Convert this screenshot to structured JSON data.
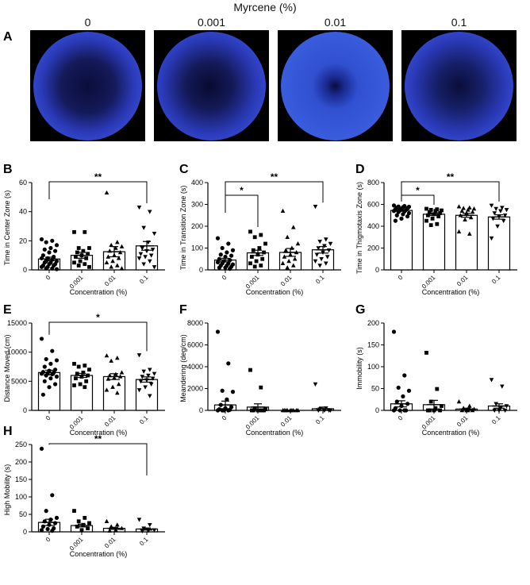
{
  "figure_title": "Myrcene (%)",
  "panel_a": {
    "letter": "A",
    "columns": [
      "0",
      "0.001",
      "0.01",
      "0.1"
    ],
    "heatmap_colors": {
      "background": "#000000",
      "low": "#1a1f6e",
      "mid": "#3a4fd8",
      "edge": "#5fc8f0",
      "high_ring": "#e0201a",
      "warm": "#f5e020"
    }
  },
  "chart_data": [
    {
      "letter": "B",
      "type": "bar",
      "ylabel": "Time in Center Zone (s)",
      "xlabel": "Concentration (%)",
      "categories": [
        "0",
        "0.001",
        "0.01",
        "0.1"
      ],
      "ylim": [
        0,
        60
      ],
      "yticks": [
        "0",
        "20",
        "40",
        "60"
      ],
      "means": [
        7.5,
        10,
        12.5,
        16.5
      ],
      "sem": [
        1.2,
        2,
        3.5,
        3
      ],
      "points": [
        [
          21,
          20,
          19,
          17,
          15,
          14,
          13,
          12,
          10,
          9,
          8,
          8,
          7,
          6,
          6,
          5,
          5,
          4,
          4,
          3,
          3,
          2,
          2,
          1,
          1,
          0.5
        ],
        [
          26,
          26,
          15,
          15,
          13,
          12,
          11,
          10,
          9,
          8,
          6,
          5,
          4,
          3,
          2
        ],
        [
          53,
          19,
          17,
          16,
          15,
          13,
          12,
          10,
          9,
          8,
          6,
          5,
          3,
          2,
          1
        ],
        [
          43,
          40,
          29,
          25,
          19,
          15,
          14,
          13,
          11,
          10,
          9,
          8,
          6,
          4,
          2
        ]
      ],
      "brackets": [
        {
          "from": 0,
          "to": 3,
          "label": "**",
          "level": "outer"
        }
      ]
    },
    {
      "letter": "C",
      "type": "bar",
      "ylabel": "Time in Transition Zone (s)",
      "xlabel": "Concentration (%)",
      "categories": [
        "0",
        "0.001",
        "0.01",
        "0.1"
      ],
      "ylim": [
        0,
        400
      ],
      "yticks": [
        "0",
        "100",
        "200",
        "300",
        "400"
      ],
      "means": [
        45,
        78,
        80,
        92
      ],
      "sem": [
        8,
        12,
        18,
        15
      ],
      "points": [
        [
          145,
          120,
          100,
          90,
          80,
          70,
          65,
          60,
          50,
          45,
          40,
          35,
          30,
          30,
          25,
          20,
          20,
          15,
          10,
          10,
          5
        ],
        [
          175,
          160,
          150,
          120,
          100,
          90,
          80,
          70,
          60,
          50,
          40,
          30,
          20,
          15
        ],
        [
          270,
          195,
          150,
          120,
          100,
          90,
          80,
          70,
          60,
          50,
          40,
          30,
          20,
          10
        ],
        [
          290,
          140,
          130,
          120,
          110,
          100,
          90,
          80,
          70,
          60,
          50,
          40,
          30,
          20
        ]
      ],
      "brackets": [
        {
          "from": 0,
          "to": 1,
          "label": "*",
          "level": "inner"
        },
        {
          "from": 0,
          "to": 3,
          "label": "**",
          "level": "outer"
        }
      ]
    },
    {
      "letter": "D",
      "type": "bar",
      "ylabel": "Time in Thigmotaxis Zone (s)",
      "xlabel": "Concentration (%)",
      "categories": [
        "0",
        "0.001",
        "0.01",
        "0.1"
      ],
      "ylim": [
        0,
        800
      ],
      "yticks": [
        "0",
        "200",
        "400",
        "600",
        "800"
      ],
      "means": [
        545,
        510,
        500,
        485
      ],
      "sem": [
        8,
        12,
        18,
        20
      ],
      "points": [
        [
          590,
          585,
          580,
          578,
          575,
          570,
          565,
          560,
          555,
          550,
          545,
          540,
          535,
          530,
          520,
          510,
          500,
          490,
          470,
          450
        ],
        [
          560,
          555,
          550,
          545,
          540,
          530,
          520,
          510,
          500,
          490,
          470,
          450,
          420,
          410
        ],
        [
          580,
          570,
          565,
          560,
          550,
          540,
          530,
          520,
          500,
          480,
          460,
          350,
          330
        ],
        [
          590,
          570,
          560,
          550,
          540,
          520,
          500,
          490,
          470,
          450,
          400,
          290
        ]
      ],
      "brackets": [
        {
          "from": 0,
          "to": 1,
          "label": "*",
          "level": "inner"
        },
        {
          "from": 0,
          "to": 3,
          "label": "**",
          "level": "outer"
        }
      ]
    },
    {
      "letter": "E",
      "type": "bar",
      "ylabel": "Distance Moved (cm)",
      "xlabel": "Concentration (%)",
      "categories": [
        "0",
        "0.001",
        "0.01",
        "0.1"
      ],
      "ylim": [
        0,
        15000
      ],
      "yticks": [
        "0",
        "5000",
        "10000",
        "15000"
      ],
      "means": [
        6500,
        6000,
        5800,
        5300
      ],
      "sem": [
        400,
        350,
        500,
        450
      ],
      "points": [
        [
          12300,
          10200,
          8800,
          8600,
          8000,
          7500,
          7000,
          6800,
          6600,
          6500,
          6400,
          6300,
          6200,
          6000,
          5800,
          5500,
          5000,
          4500,
          4000,
          2700
        ],
        [
          8000,
          7700,
          7500,
          7000,
          6500,
          6300,
          6000,
          5800,
          5500,
          5000,
          4500,
          4300,
          4000
        ],
        [
          9400,
          9000,
          8500,
          6500,
          6200,
          6000,
          5800,
          5600,
          5400,
          4500,
          4000,
          3500,
          3000
        ],
        [
          9500,
          7000,
          6700,
          6300,
          6000,
          5800,
          5500,
          5200,
          5000,
          4500,
          4000,
          3500,
          2500
        ]
      ],
      "brackets": [
        {
          "from": 0,
          "to": 3,
          "label": "*",
          "level": "outer"
        }
      ]
    },
    {
      "letter": "F",
      "type": "bar",
      "ylabel": "Meandering (deg/cm)",
      "xlabel": "Concentration (%)",
      "categories": [
        "0",
        "0.001",
        "0.01",
        "0.1"
      ],
      "ylim": [
        0,
        8000
      ],
      "yticks": [
        "0",
        "2000",
        "4000",
        "6000",
        "8000"
      ],
      "means": [
        500,
        300,
        0,
        150
      ],
      "sem": [
        350,
        300,
        0,
        150
      ],
      "points": [
        [
          7200,
          4300,
          1800,
          1700,
          1000,
          500,
          300,
          200,
          100,
          50,
          0,
          0,
          0,
          0
        ],
        [
          3700,
          2100,
          200,
          100,
          0,
          0,
          0,
          0,
          0,
          0
        ],
        [
          0,
          0,
          0,
          0,
          0,
          0,
          0,
          0,
          0
        ],
        [
          2400,
          200,
          100,
          0,
          0,
          0,
          0
        ]
      ],
      "brackets": []
    },
    {
      "letter": "G",
      "type": "bar",
      "ylabel": "Immobility (s)",
      "xlabel": "Concentration (%)",
      "categories": [
        "0",
        "0.001",
        "0.01",
        "0.1"
      ],
      "ylim": [
        0,
        200
      ],
      "yticks": [
        "0",
        "50",
        "100",
        "150",
        "200"
      ],
      "means": [
        15,
        13,
        3,
        10
      ],
      "sem": [
        7,
        10,
        2,
        5
      ],
      "points": [
        [
          180,
          80,
          52,
          45,
          32,
          20,
          15,
          10,
          5,
          0,
          0,
          0,
          0
        ],
        [
          132,
          49,
          20,
          10,
          5,
          0,
          0,
          0,
          0
        ],
        [
          20,
          10,
          5,
          3,
          0,
          0,
          0,
          0
        ],
        [
          70,
          55,
          15,
          10,
          5,
          0,
          0,
          0
        ]
      ],
      "brackets": []
    },
    {
      "letter": "H",
      "type": "bar",
      "ylabel": "High Mobility (s)",
      "xlabel": "Concentration (%)",
      "categories": [
        "0",
        "0.001",
        "0.01",
        "0.1"
      ],
      "ylim": [
        0,
        250
      ],
      "yticks": [
        "0",
        "50",
        "100",
        "150",
        "200",
        "250"
      ],
      "means": [
        27,
        18,
        10,
        8
      ],
      "sem": [
        9,
        4,
        3,
        3
      ],
      "points": [
        [
          238,
          105,
          60,
          40,
          35,
          30,
          25,
          20,
          15,
          10,
          8,
          5,
          3
        ],
        [
          60,
          40,
          30,
          25,
          20,
          15,
          10,
          5
        ],
        [
          30,
          20,
          15,
          10,
          5,
          3
        ],
        [
          35,
          20,
          10,
          5,
          3,
          2
        ]
      ],
      "brackets": [
        {
          "from": 0,
          "to": 3,
          "label": "**",
          "level": "outer"
        }
      ]
    }
  ],
  "markers": [
    "circle",
    "square",
    "triangle-up",
    "triangle-down"
  ]
}
